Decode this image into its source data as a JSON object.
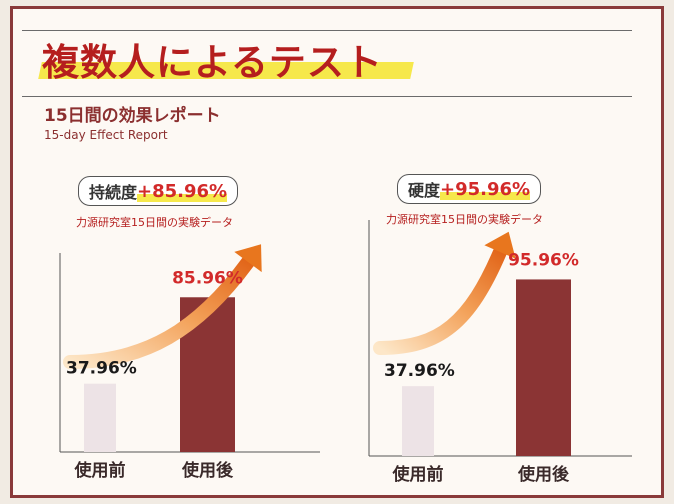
{
  "header": {
    "title": "複数人によるテスト",
    "subtitle": "15日間の効果レポート",
    "subtitle_en": "15-day Effect Report"
  },
  "panels": [
    {
      "label": "持続度",
      "value": "+85.96%",
      "source": "力源研究室15日間の実験データ"
    },
    {
      "label": "硬度",
      "value": "+95.96%",
      "source": "力源研究室15日間の実験データ"
    }
  ],
  "colors": {
    "bar_before": "#ede3e6",
    "bar_after": "#8b3434",
    "title_red": "#b51e1e",
    "highlight_yellow": "#f6e84b",
    "arrow_orange": "#e8761e",
    "frame": "#8a3a3a"
  },
  "chart_data": [
    {
      "type": "bar",
      "categories": [
        "使用前",
        "使用後"
      ],
      "values": [
        37.96,
        85.96
      ],
      "labels": [
        "37.96%",
        "85.96%"
      ],
      "ylim": [
        0,
        100
      ],
      "annotation": "持続度+85.96%"
    },
    {
      "type": "bar",
      "categories": [
        "使用前",
        "使用後"
      ],
      "values": [
        37.96,
        95.96
      ],
      "labels": [
        "37.96%",
        "95.96%"
      ],
      "ylim": [
        0,
        100
      ],
      "annotation": "硬度+95.96%"
    }
  ]
}
